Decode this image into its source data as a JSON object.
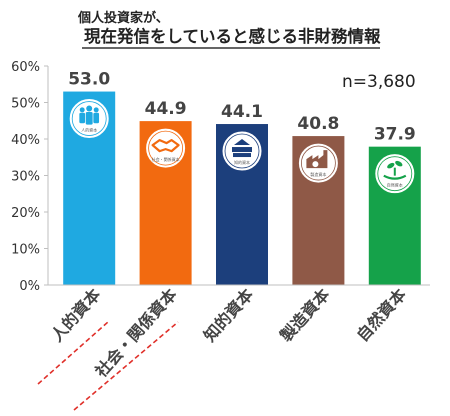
{
  "chart_data": {
    "type": "bar",
    "title_sub": "個人投資家が、",
    "title": "現在発信をしていると感じる非財務情報",
    "annotation": "n=3,680",
    "categories": [
      "人的資本",
      "社会・関係資本",
      "知的資本",
      "製造資本",
      "自然資本"
    ],
    "values": [
      53.0,
      44.9,
      44.1,
      40.8,
      37.9
    ],
    "value_labels": [
      "53.0",
      "44.9",
      "44.1",
      "40.8",
      "37.9"
    ],
    "colors": [
      "#1fa9e1",
      "#f26a10",
      "#1c3f7c",
      "#8f5947",
      "#15a24a"
    ],
    "ylim": [
      0,
      60
    ],
    "yticks": [
      "0%",
      "10%",
      "20%",
      "30%",
      "40%",
      "50%",
      "60%"
    ],
    "grid": false,
    "icon_labels": [
      "人的資本",
      "社会・関係資本",
      "知的資本",
      "製造資本",
      "自然資本"
    ],
    "icons": [
      "people-icon",
      "handshake-icon",
      "books-icon",
      "factory-icon",
      "sprout-icon"
    ],
    "underline_color": "#e0302a"
  }
}
